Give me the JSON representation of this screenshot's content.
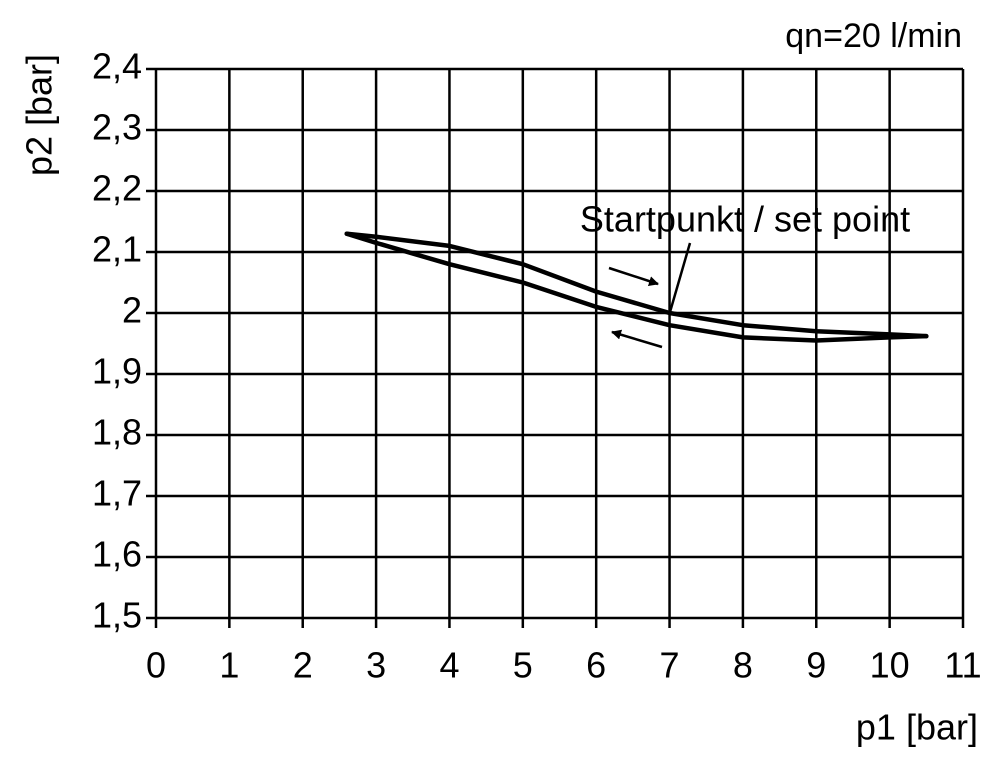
{
  "chart_data": {
    "type": "line",
    "title": "qn=20 l/min",
    "annotation": "Startpunkt / set point",
    "x_label": "p1 [bar]",
    "y_label": "p2 [bar]",
    "xlim": [
      0,
      11
    ],
    "xticks": [
      0,
      1,
      2,
      3,
      4,
      5,
      6,
      7,
      8,
      9,
      10,
      11
    ],
    "ylim": [
      1.5,
      2.4
    ],
    "yticks": [
      {
        "value": 1.5,
        "label": "1,5"
      },
      {
        "value": 1.6,
        "label": "1,6"
      },
      {
        "value": 1.7,
        "label": "1,7"
      },
      {
        "value": 1.8,
        "label": "1,8"
      },
      {
        "value": 1.9,
        "label": "1,9"
      },
      2,
      {
        "value": 2.1,
        "label": "2,1"
      },
      {
        "value": 2.2,
        "label": "2,2"
      },
      {
        "value": 2.3,
        "label": "2,3"
      },
      {
        "value": 2.4,
        "label": "2,4"
      }
    ],
    "grid": true,
    "series": [
      {
        "color": "#000000",
        "x": [
          2.6,
          3,
          4,
          5,
          6,
          7,
          8,
          9,
          10,
          10.5
        ],
        "values": [
          2.13,
          2.125,
          2.11,
          2.08,
          2.035,
          2.0,
          1.98,
          1.97,
          1.965,
          1.962
        ]
      },
      {
        "color": "#000000",
        "x": [
          2.6,
          3,
          4,
          5,
          6,
          7,
          8,
          9,
          10,
          10.5
        ],
        "values": [
          2.13,
          2.115,
          2.08,
          2.05,
          2.01,
          1.98,
          1.96,
          1.955,
          1.96,
          1.962
        ]
      }
    ]
  }
}
